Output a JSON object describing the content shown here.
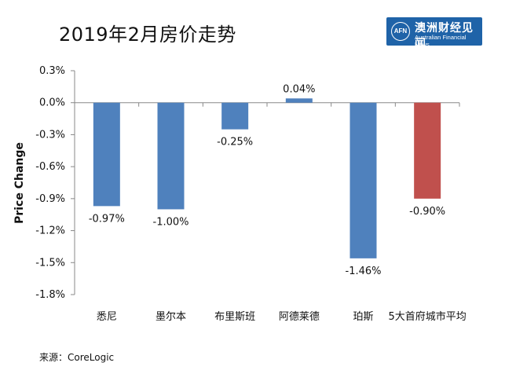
{
  "title": "2019年2月房价走势",
  "logo": {
    "mark": "AFN",
    "name_cn": "澳洲财经见闻",
    "name_en": "Australian Financial News"
  },
  "source": "来源：CoreLogic",
  "colors": {
    "bar_default": "#4f81bd",
    "bar_highlight": "#c0504d",
    "axis": "#888888"
  },
  "chart_data": {
    "type": "bar",
    "ylabel": "Price Change",
    "ylim": [
      -1.8,
      0.3
    ],
    "yticks": [
      0.3,
      0.0,
      -0.3,
      -0.6,
      -0.9,
      -1.2,
      -1.5,
      -1.8
    ],
    "ytick_labels": [
      "0.3%",
      "0.0%",
      "-0.3%",
      "-0.6%",
      "-0.9%",
      "-1.2%",
      "-1.5%",
      "-1.8%"
    ],
    "categories": [
      "悉尼",
      "墨尔本",
      "布里斯班",
      "阿德莱德",
      "珀斯",
      "5大首府城市平均"
    ],
    "values": [
      -0.97,
      -1.0,
      -0.25,
      0.04,
      -1.46,
      -0.9
    ],
    "data_labels": [
      "-0.97%",
      "-1.00%",
      "-0.25%",
      "0.04%",
      "-1.46%",
      "-0.90%"
    ],
    "highlight_index": 5,
    "grid": false
  }
}
